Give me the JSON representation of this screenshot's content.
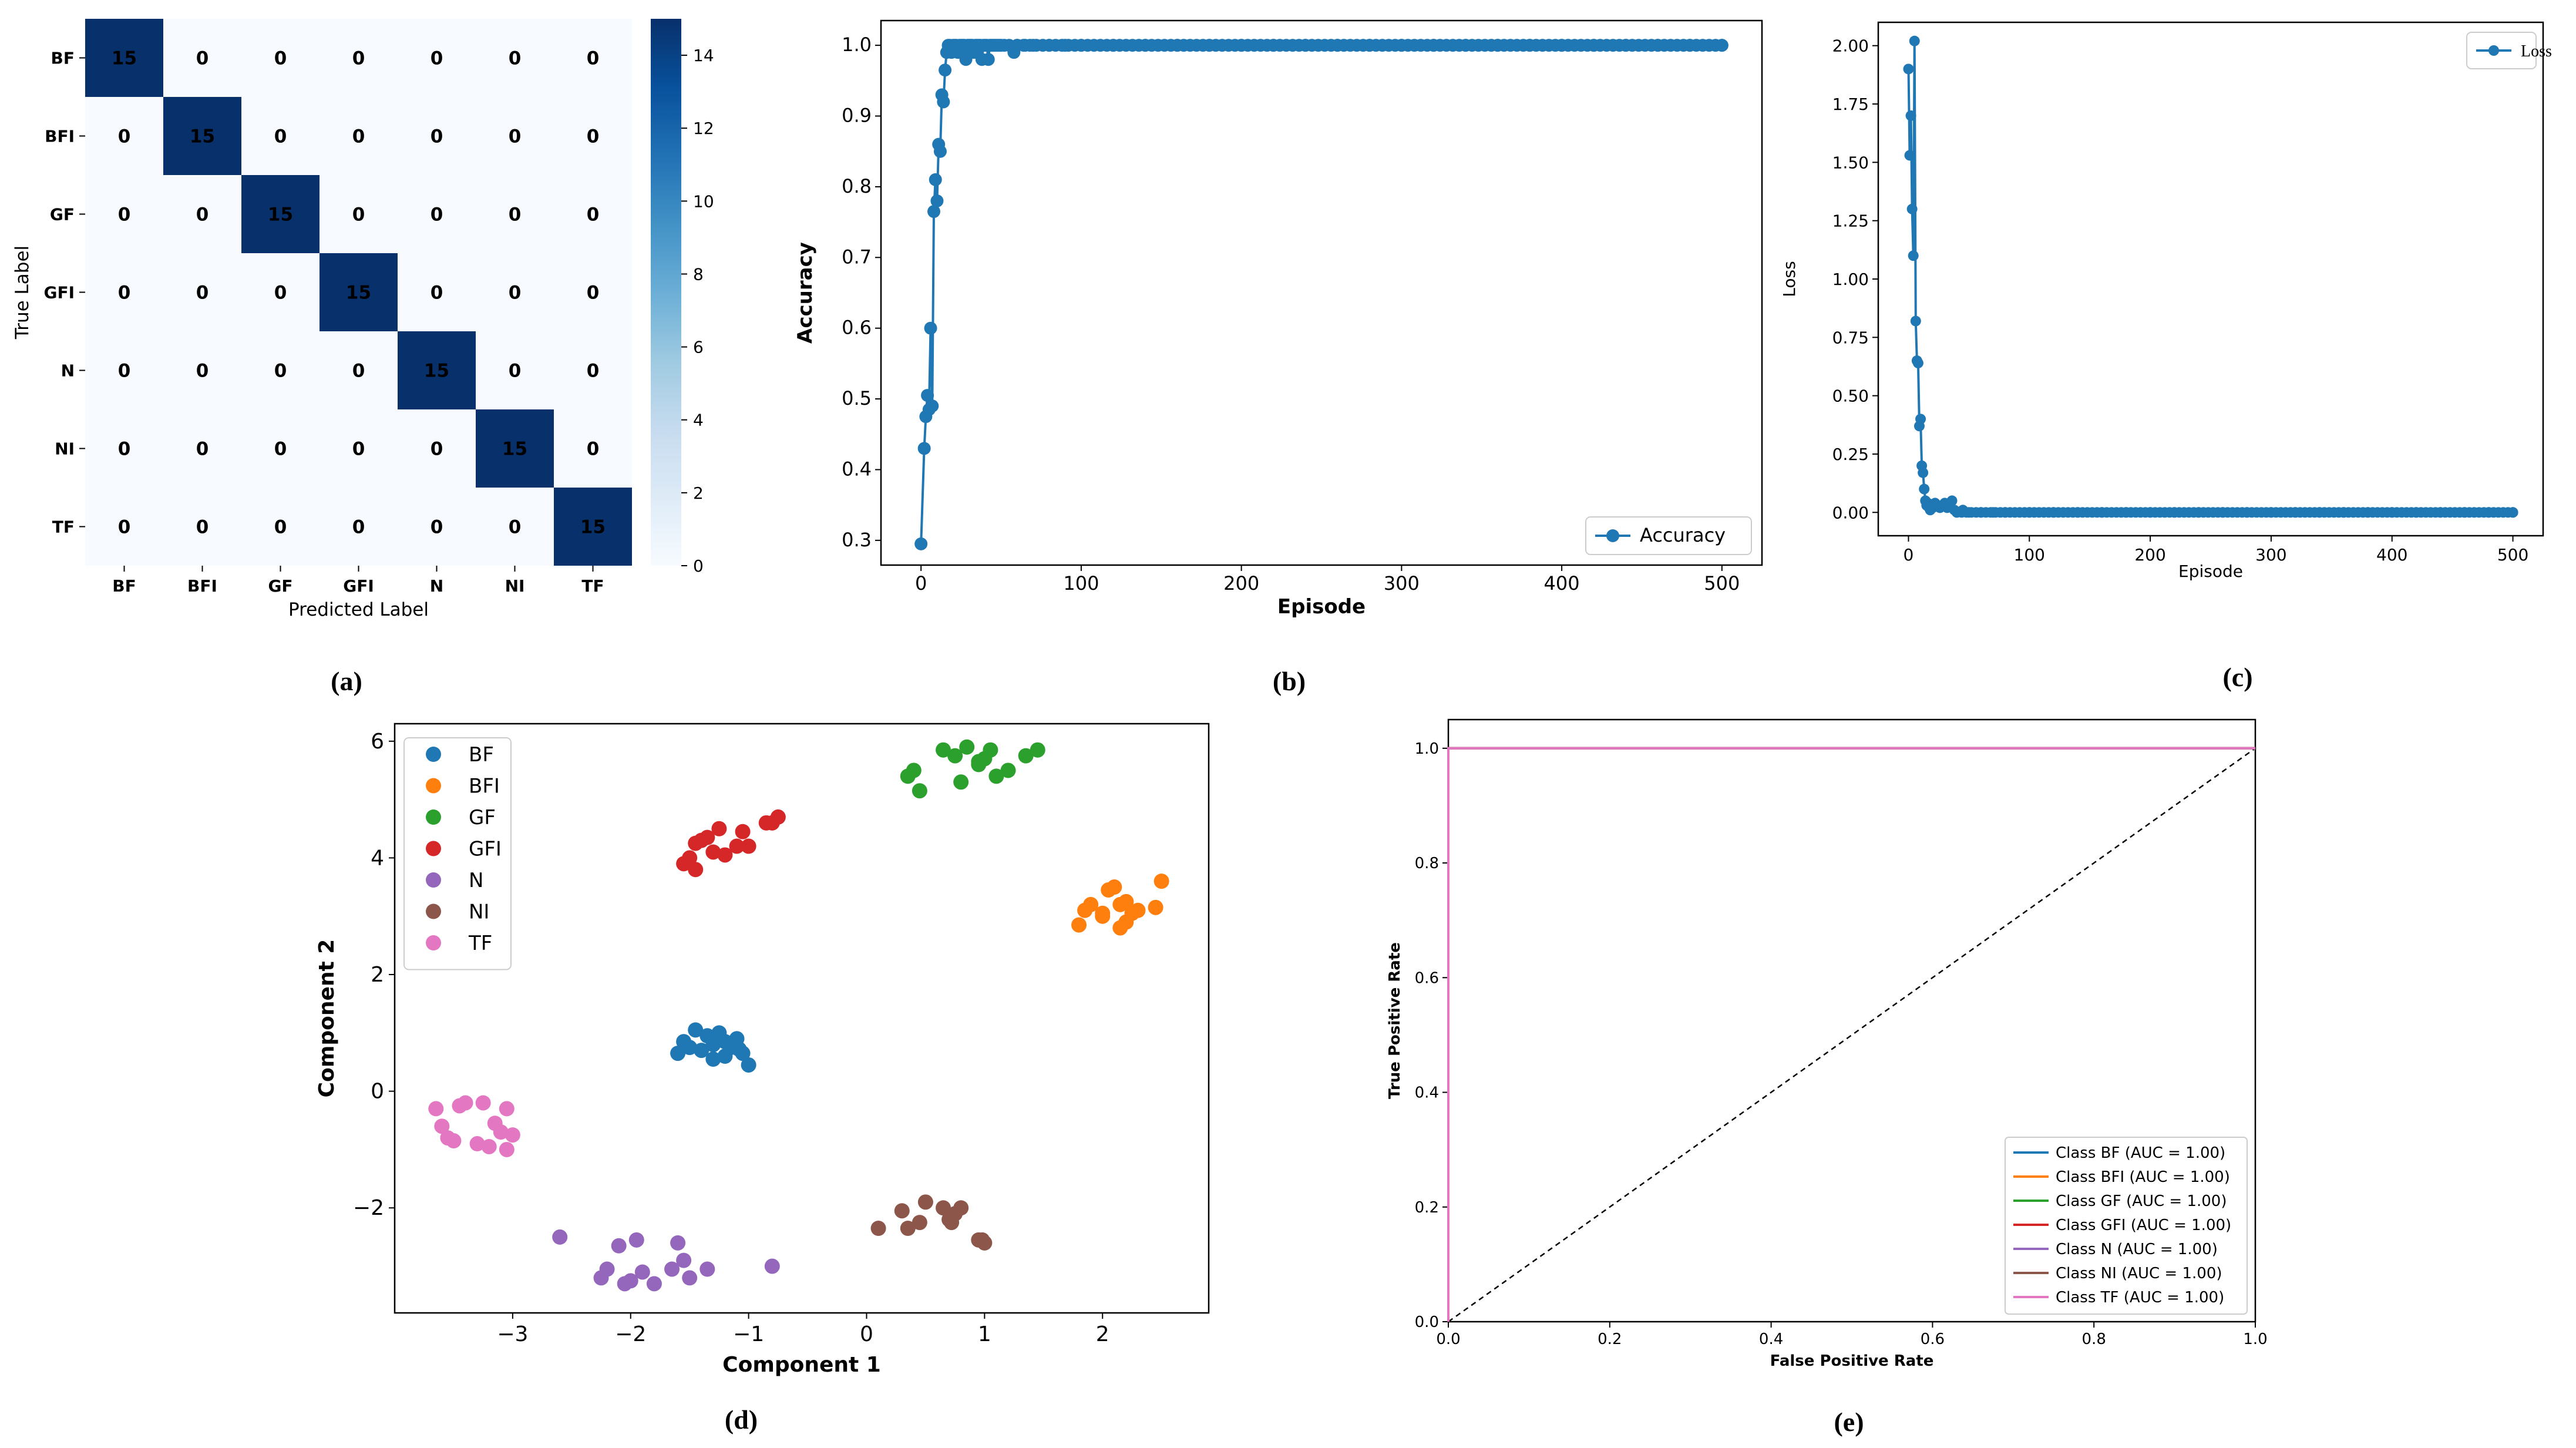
{
  "panel_labels": {
    "a": "(a)",
    "b": "(b)",
    "c": "(c)",
    "d": "(d)",
    "e": "(e)"
  },
  "colors": {
    "BF": "#1f77b4",
    "BFI": "#ff7f0e",
    "GF": "#2ca02c",
    "GFI": "#d62728",
    "N": "#9467bd",
    "NI": "#8c564b",
    "TF": "#e377c2",
    "series": "#1f77b4"
  },
  "chart_data": [
    {
      "id": "a",
      "type": "heatmap",
      "title": "",
      "xlabel": "Predicted Label",
      "ylabel": "True Label",
      "categories": [
        "BF",
        "BFI",
        "GF",
        "GFI",
        "N",
        "NI",
        "TF"
      ],
      "matrix": [
        [
          15,
          0,
          0,
          0,
          0,
          0,
          0
        ],
        [
          0,
          15,
          0,
          0,
          0,
          0,
          0
        ],
        [
          0,
          0,
          15,
          0,
          0,
          0,
          0
        ],
        [
          0,
          0,
          0,
          15,
          0,
          0,
          0
        ],
        [
          0,
          0,
          0,
          0,
          15,
          0,
          0
        ],
        [
          0,
          0,
          0,
          0,
          0,
          15,
          0
        ],
        [
          0,
          0,
          0,
          0,
          0,
          0,
          15
        ]
      ],
      "colorbar": {
        "range": [
          0,
          15
        ],
        "ticks": [
          "0",
          "2",
          "4",
          "6",
          "8",
          "10",
          "12",
          "14"
        ]
      }
    },
    {
      "id": "b",
      "type": "line",
      "xlabel": "Episode",
      "ylabel": "Accuracy",
      "legend": "Accuracy",
      "legend_position": "lower-right",
      "xlim": [
        -25,
        525
      ],
      "ylim": [
        0.265,
        1.035
      ],
      "xticks": [
        "0",
        "100",
        "200",
        "300",
        "400",
        "500"
      ],
      "yticks": [
        "0.3",
        "0.4",
        "0.5",
        "0.6",
        "0.7",
        "0.8",
        "0.9",
        "1.0"
      ],
      "x": [
        0,
        2,
        3,
        4,
        5,
        6,
        7,
        8,
        9,
        10,
        11,
        12,
        13,
        14,
        15,
        16,
        17,
        18,
        19,
        20,
        21,
        22,
        23,
        24,
        25,
        26,
        27,
        28,
        29,
        30,
        31,
        32,
        33,
        34,
        35,
        36,
        37,
        38,
        39,
        40,
        41,
        42,
        43,
        44,
        45,
        46,
        47,
        48,
        49,
        50,
        52,
        55,
        58,
        60,
        65,
        70,
        80,
        90,
        100,
        120,
        140,
        160,
        180,
        200,
        220,
        240,
        260,
        280,
        300,
        320,
        340,
        360,
        380,
        400,
        420,
        440,
        460,
        480,
        500
      ],
      "y": [
        0.295,
        0.43,
        0.475,
        0.505,
        0.485,
        0.6,
        0.49,
        0.765,
        0.81,
        0.78,
        0.86,
        0.85,
        0.93,
        0.92,
        0.965,
        0.99,
        1.0,
        1.0,
        0.99,
        1.0,
        1.0,
        1.0,
        0.99,
        1.0,
        1.0,
        1.0,
        1.0,
        0.98,
        1.0,
        1.0,
        1.0,
        1.0,
        0.99,
        1.0,
        1.0,
        1.0,
        1.0,
        0.98,
        1.0,
        1.0,
        1.0,
        0.98,
        1.0,
        1.0,
        1.0,
        1.0,
        1.0,
        1.0,
        1.0,
        1.0,
        1.0,
        1.0,
        0.99,
        1.0,
        1.0,
        1.0,
        1.0,
        1.0,
        1.0,
        1.0,
        1.0,
        1.0,
        1.0,
        1.0,
        1.0,
        1.0,
        1.0,
        1.0,
        1.0,
        1.0,
        1.0,
        1.0,
        1.0,
        1.0,
        1.0,
        1.0,
        1.0,
        1.0,
        1.0
      ]
    },
    {
      "id": "c",
      "type": "line",
      "xlabel": "Episode",
      "ylabel": "Loss",
      "legend": "Loss",
      "legend_position": "upper-right",
      "xlim": [
        -25,
        525
      ],
      "ylim": [
        -0.1,
        2.1
      ],
      "xticks": [
        "0",
        "100",
        "200",
        "300",
        "400",
        "500"
      ],
      "yticks": [
        "0.00",
        "0.25",
        "0.50",
        "0.75",
        "1.00",
        "1.25",
        "1.50",
        "1.75",
        "2.00"
      ],
      "x": [
        0,
        1,
        2,
        3,
        4,
        5,
        6,
        7,
        8,
        9,
        10,
        11,
        12,
        13,
        14,
        15,
        16,
        17,
        18,
        19,
        20,
        22,
        24,
        26,
        28,
        30,
        32,
        34,
        36,
        38,
        40,
        45,
        50,
        60,
        70,
        80,
        100,
        120,
        140,
        160,
        180,
        200,
        220,
        240,
        260,
        280,
        300,
        320,
        340,
        360,
        380,
        400,
        420,
        440,
        460,
        480,
        500
      ],
      "y": [
        1.9,
        1.53,
        1.7,
        1.3,
        1.1,
        2.02,
        0.82,
        0.65,
        0.64,
        0.37,
        0.4,
        0.2,
        0.17,
        0.1,
        0.05,
        0.03,
        0.04,
        0.02,
        0.01,
        0.03,
        0.02,
        0.04,
        0.03,
        0.02,
        0.03,
        0.04,
        0.02,
        0.03,
        0.05,
        0.01,
        0.0,
        0.01,
        0.0,
        0.0,
        0.0,
        0.0,
        0.0,
        0.0,
        0.0,
        0.0,
        0.0,
        0.0,
        0.0,
        0.0,
        0.0,
        0.0,
        0.0,
        0.0,
        0.0,
        0.0,
        0.0,
        0.0,
        0.0,
        0.0,
        0.0,
        0.0,
        0.0
      ]
    },
    {
      "id": "d",
      "type": "scatter",
      "xlabel": "Component 1",
      "ylabel": "Component 2",
      "xlim": [
        -4.0,
        2.9
      ],
      "ylim": [
        -3.8,
        6.3
      ],
      "xticks": [
        {
          "v": -3,
          "label": "−3"
        },
        {
          "v": -2,
          "label": "−2"
        },
        {
          "v": -1,
          "label": "−1"
        },
        {
          "v": 0,
          "label": "0"
        },
        {
          "v": 1,
          "label": "1"
        },
        {
          "v": 2,
          "label": "2"
        }
      ],
      "yticks": [
        {
          "v": -2,
          "label": "−2"
        },
        {
          "v": 0,
          "label": "0"
        },
        {
          "v": 2,
          "label": "2"
        },
        {
          "v": 4,
          "label": "4"
        },
        {
          "v": 6,
          "label": "6"
        }
      ],
      "legend_position": "upper-left",
      "series": [
        {
          "name": "BF",
          "color": "#1f77b4",
          "points": [
            [
              -1.6,
              0.65
            ],
            [
              -1.55,
              0.85
            ],
            [
              -1.45,
              1.05
            ],
            [
              -1.4,
              0.7
            ],
            [
              -1.35,
              0.95
            ],
            [
              -1.3,
              0.8
            ],
            [
              -1.25,
              1.0
            ],
            [
              -1.2,
              0.6
            ],
            [
              -1.15,
              0.75
            ],
            [
              -1.1,
              0.9
            ],
            [
              -1.05,
              0.65
            ],
            [
              -1.0,
              0.45
            ],
            [
              -1.3,
              0.55
            ],
            [
              -1.5,
              0.75
            ],
            [
              -1.2,
              0.85
            ],
            [
              -1.08,
              0.72
            ]
          ]
        },
        {
          "name": "BFI",
          "color": "#ff7f0e",
          "points": [
            [
              1.8,
              2.85
            ],
            [
              1.85,
              3.1
            ],
            [
              1.9,
              3.2
            ],
            [
              2.0,
              3.0
            ],
            [
              2.05,
              3.45
            ],
            [
              2.1,
              3.5
            ],
            [
              2.15,
              2.8
            ],
            [
              2.2,
              3.25
            ],
            [
              2.25,
              3.05
            ],
            [
              2.3,
              3.1
            ],
            [
              2.45,
              3.15
            ],
            [
              2.5,
              3.6
            ],
            [
              2.2,
              2.9
            ],
            [
              2.15,
              3.2
            ],
            [
              2.0,
              3.05
            ]
          ]
        },
        {
          "name": "GF",
          "color": "#2ca02c",
          "points": [
            [
              0.35,
              5.4
            ],
            [
              0.4,
              5.5
            ],
            [
              0.45,
              5.15
            ],
            [
              0.65,
              5.85
            ],
            [
              0.75,
              5.75
            ],
            [
              0.8,
              5.3
            ],
            [
              0.85,
              5.9
            ],
            [
              0.95,
              5.65
            ],
            [
              1.0,
              5.7
            ],
            [
              1.05,
              5.85
            ],
            [
              1.1,
              5.4
            ],
            [
              1.2,
              5.5
            ],
            [
              1.35,
              5.75
            ],
            [
              1.45,
              5.85
            ],
            [
              0.95,
              5.6
            ]
          ]
        },
        {
          "name": "GFI",
          "color": "#d62728",
          "points": [
            [
              -1.55,
              3.9
            ],
            [
              -1.5,
              4.0
            ],
            [
              -1.45,
              3.8
            ],
            [
              -1.45,
              4.25
            ],
            [
              -1.4,
              4.3
            ],
            [
              -1.35,
              4.35
            ],
            [
              -1.3,
              4.1
            ],
            [
              -1.25,
              4.5
            ],
            [
              -1.2,
              4.05
            ],
            [
              -1.1,
              4.2
            ],
            [
              -1.05,
              4.45
            ],
            [
              -1.0,
              4.2
            ],
            [
              -0.85,
              4.6
            ],
            [
              -0.75,
              4.7
            ],
            [
              -0.8,
              4.6
            ]
          ]
        },
        {
          "name": "N",
          "color": "#9467bd",
          "points": [
            [
              -2.6,
              -2.5
            ],
            [
              -2.25,
              -3.2
            ],
            [
              -2.2,
              -3.05
            ],
            [
              -2.1,
              -2.65
            ],
            [
              -2.05,
              -3.3
            ],
            [
              -2.0,
              -3.25
            ],
            [
              -1.95,
              -2.55
            ],
            [
              -1.9,
              -3.1
            ],
            [
              -1.8,
              -3.3
            ],
            [
              -1.65,
              -3.05
            ],
            [
              -1.6,
              -2.6
            ],
            [
              -1.55,
              -2.9
            ],
            [
              -1.5,
              -3.2
            ],
            [
              -1.35,
              -3.05
            ],
            [
              -0.8,
              -3.0
            ]
          ]
        },
        {
          "name": "NI",
          "color": "#8c564b",
          "points": [
            [
              0.1,
              -2.35
            ],
            [
              0.3,
              -2.05
            ],
            [
              0.35,
              -2.35
            ],
            [
              0.45,
              -2.25
            ],
            [
              0.5,
              -1.9
            ],
            [
              0.65,
              -2.0
            ],
            [
              0.7,
              -2.2
            ],
            [
              0.75,
              -2.1
            ],
            [
              0.8,
              -2.0
            ],
            [
              0.95,
              -2.55
            ],
            [
              1.0,
              -2.6
            ],
            [
              0.98,
              -2.55
            ],
            [
              0.72,
              -2.25
            ]
          ]
        },
        {
          "name": "TF",
          "color": "#e377c2",
          "points": [
            [
              -3.65,
              -0.3
            ],
            [
              -3.6,
              -0.6
            ],
            [
              -3.55,
              -0.8
            ],
            [
              -3.5,
              -0.85
            ],
            [
              -3.45,
              -0.25
            ],
            [
              -3.4,
              -0.2
            ],
            [
              -3.3,
              -0.9
            ],
            [
              -3.25,
              -0.2
            ],
            [
              -3.2,
              -0.95
            ],
            [
              -3.15,
              -0.55
            ],
            [
              -3.1,
              -0.7
            ],
            [
              -3.05,
              -0.3
            ],
            [
              -3.0,
              -0.75
            ],
            [
              -3.05,
              -1.0
            ]
          ]
        }
      ]
    },
    {
      "id": "e",
      "type": "line",
      "xlabel": "False Positive Rate",
      "ylabel": "True Positive Rate",
      "xlim": [
        0.0,
        1.0
      ],
      "ylim": [
        0.0,
        1.05
      ],
      "xticks": [
        "0.0",
        "0.2",
        "0.4",
        "0.6",
        "0.8",
        "1.0"
      ],
      "yticks": [
        "0.0",
        "0.2",
        "0.4",
        "0.6",
        "0.8",
        "1.0"
      ],
      "legend_position": "lower-right",
      "diagonal": {
        "x": [
          0.0,
          1.0
        ],
        "y": [
          0.0,
          1.0
        ],
        "style": "dashed"
      },
      "series": [
        {
          "name": "Class BF (AUC = 1.00)",
          "color": "#1f77b4",
          "x": [
            0,
            0,
            1
          ],
          "y": [
            0,
            1,
            1
          ]
        },
        {
          "name": "Class BFI (AUC = 1.00)",
          "color": "#ff7f0e",
          "x": [
            0,
            0,
            1
          ],
          "y": [
            0,
            1,
            1
          ]
        },
        {
          "name": "Class GF (AUC = 1.00)",
          "color": "#2ca02c",
          "x": [
            0,
            0,
            1
          ],
          "y": [
            0,
            1,
            1
          ]
        },
        {
          "name": "Class GFI (AUC = 1.00)",
          "color": "#d62728",
          "x": [
            0,
            0,
            1
          ],
          "y": [
            0,
            1,
            1
          ]
        },
        {
          "name": "Class N (AUC = 1.00)",
          "color": "#9467bd",
          "x": [
            0,
            0,
            1
          ],
          "y": [
            0,
            1,
            1
          ]
        },
        {
          "name": "Class NI (AUC = 1.00)",
          "color": "#8c564b",
          "x": [
            0,
            0,
            1
          ],
          "y": [
            0,
            1,
            1
          ]
        },
        {
          "name": "Class TF (AUC = 1.00)",
          "color": "#e377c2",
          "x": [
            0,
            0,
            1
          ],
          "y": [
            0,
            1,
            1
          ]
        }
      ]
    }
  ]
}
